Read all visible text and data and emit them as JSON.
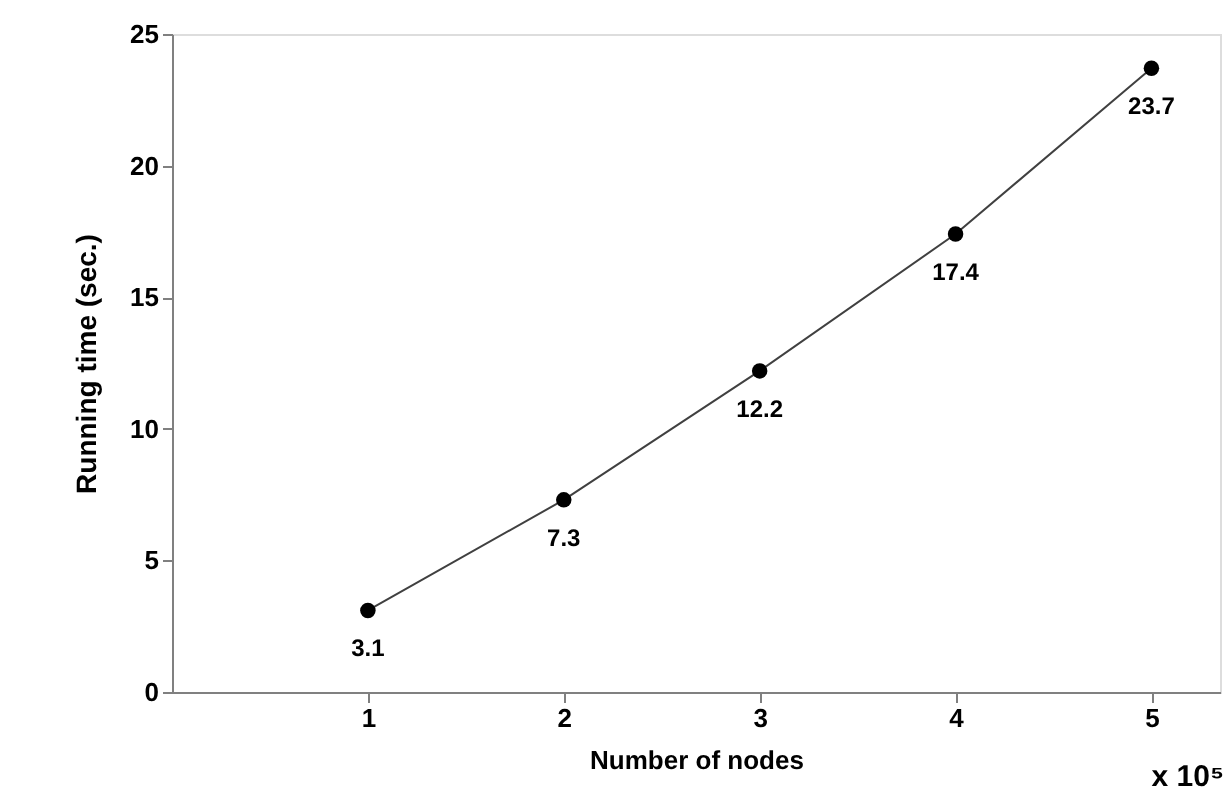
{
  "chart_data": {
    "type": "line",
    "xlabel": "Number of nodes",
    "ylabel": "Running time (sec.)",
    "x": [
      1,
      2,
      3,
      4,
      5
    ],
    "series": [
      {
        "color": "#000000",
        "values": [
          3.1,
          7.3,
          12.2,
          17.4,
          23.7
        ]
      }
    ],
    "xlim": [
      0,
      5.35
    ],
    "xticks": [
      1,
      2,
      3,
      4,
      5
    ],
    "ylim": [
      0,
      25
    ],
    "yticks": [
      0,
      5,
      10,
      15,
      20,
      25
    ],
    "data_labels": true,
    "marker": "circle",
    "line_style": "solid",
    "grid": false,
    "annotations": [
      "x 10⁵"
    ]
  }
}
